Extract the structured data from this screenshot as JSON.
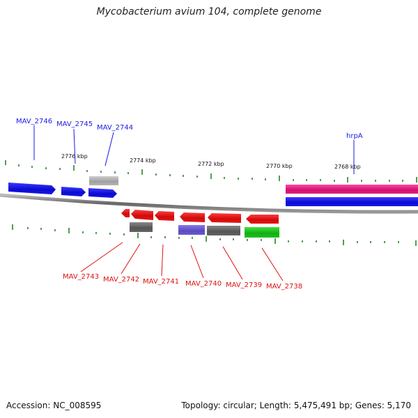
{
  "title": "Mycobacterium avium 104, complete genome",
  "footer": {
    "accession": "Accession: NC_008595",
    "summary": "Topology: circular; Length: 5,475,491 bp; Genes: 5,170"
  },
  "scale_labels": [
    "2776 kbp",
    "2774 kbp",
    "2772 kbp",
    "2770 kbp",
    "2768 kbp"
  ],
  "genes_top": [
    "MAV_2746",
    "MAV_2745",
    "MAV_2744",
    "hrpA"
  ],
  "genes_bottom": [
    "MAV_2743",
    "MAV_2742",
    "MAV_2741",
    "MAV_2740",
    "MAV_2739",
    "MAV_2738"
  ],
  "colors": {
    "forward_label": "#1a1ae6",
    "reverse_label": "#e01010",
    "blue_gene": "#1010e0",
    "red_gene": "#e01010",
    "magenta_gene": "#e0207a",
    "gray_gene": "#666666",
    "lightgray_gene": "#b0b0b0",
    "purple_gene": "#6a5acd",
    "green_gene": "#20c020",
    "tick": "#1a7a1a"
  }
}
